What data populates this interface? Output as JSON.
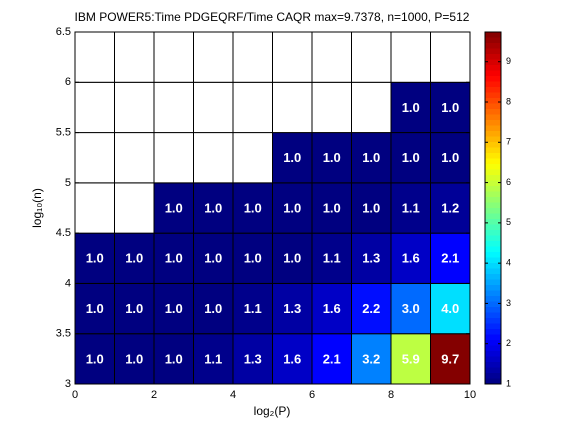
{
  "chart_data": {
    "type": "heatmap",
    "title": "IBM POWER5:Time PDGEQRF/Time CAQR  max=9.7378, n=1000, P=512",
    "xlabel": "log₂(P)",
    "ylabel": "log₁₀(n)",
    "xbins": [
      0,
      1,
      2,
      3,
      4,
      5,
      6,
      7,
      8,
      9,
      10
    ],
    "ybins": [
      3,
      3.5,
      4,
      4.5,
      5,
      5.5,
      6,
      6.5
    ],
    "z": [
      [
        1.0,
        1.0,
        1.0,
        1.1,
        1.3,
        1.6,
        2.1,
        3.2,
        5.9,
        9.7
      ],
      [
        1.0,
        1.0,
        1.0,
        1.0,
        1.1,
        1.3,
        1.6,
        2.2,
        3.0,
        4.0
      ],
      [
        1.0,
        1.0,
        1.0,
        1.0,
        1.0,
        1.0,
        1.1,
        1.3,
        1.6,
        2.1
      ],
      [
        null,
        null,
        1.0,
        1.0,
        1.0,
        1.0,
        1.0,
        1.0,
        1.1,
        1.2
      ],
      [
        null,
        null,
        null,
        null,
        null,
        1.0,
        1.0,
        1.0,
        1.0,
        1.0
      ],
      [
        null,
        null,
        null,
        null,
        null,
        null,
        null,
        null,
        1.0,
        1.0
      ],
      [
        null,
        null,
        null,
        null,
        null,
        null,
        null,
        null,
        null,
        null
      ]
    ],
    "value_labels": [
      [
        "1.0",
        "1.0",
        "1.0",
        "1.1",
        "1.3",
        "1.6",
        "2.1",
        "3.2",
        "5.9",
        "9.7"
      ],
      [
        "1.0",
        "1.0",
        "1.0",
        "1.0",
        "1.1",
        "1.3",
        "1.6",
        "2.2",
        "3.0",
        "4.0"
      ],
      [
        "1.0",
        "1.0",
        "1.0",
        "1.0",
        "1.0",
        "1.0",
        "1.1",
        "1.3",
        "1.6",
        "2.1"
      ],
      [
        null,
        null,
        "1.0",
        "1.0",
        "1.0",
        "1.0",
        "1.0",
        "1.0",
        "1.1",
        "1.2"
      ],
      [
        null,
        null,
        null,
        null,
        null,
        "1.0",
        "1.0",
        "1.0",
        "1.0",
        "1.0"
      ],
      [
        null,
        null,
        null,
        null,
        null,
        null,
        null,
        null,
        "1.0",
        "1.0"
      ],
      [
        null,
        null,
        null,
        null,
        null,
        null,
        null,
        null,
        null,
        null
      ]
    ],
    "xlim": [
      0,
      10
    ],
    "xticks": [
      0,
      2,
      4,
      6,
      8,
      10
    ],
    "ylim": [
      3,
      6.5
    ],
    "yticks": [
      3,
      3.5,
      4,
      4.5,
      5,
      5.5,
      6,
      6.5
    ],
    "colormap": "jet",
    "clim": [
      1,
      9.7378
    ],
    "cticks": [
      1,
      2,
      3,
      4,
      5,
      6,
      7,
      8,
      9
    ]
  }
}
